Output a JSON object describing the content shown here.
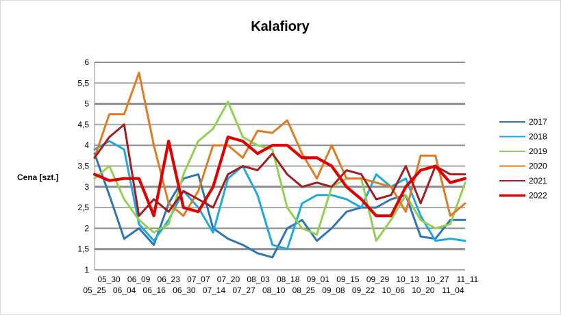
{
  "chart_data": {
    "type": "line",
    "title": "Kalafiory",
    "ylabel": "Cena [szt.]",
    "xlabel": "",
    "ylim": [
      1,
      6
    ],
    "yticks": [
      "1",
      "1,5",
      "2",
      "2,5",
      "3",
      "3,5",
      "4",
      "4,5",
      "5",
      "5,5",
      "6"
    ],
    "ytick_values": [
      1,
      1.5,
      2,
      2.5,
      3,
      3.5,
      4,
      4.5,
      5,
      5.5,
      6
    ],
    "grid": true,
    "legend_position": "right",
    "x_ticks_upper": [
      "05_30",
      "06_09",
      "06_23",
      "07_07",
      "07_20",
      "08_03",
      "08_18",
      "09_01",
      "09_15",
      "09_29",
      "10_13",
      "10_27",
      "11_11"
    ],
    "x_ticks_lower": [
      "05_25",
      "06_04",
      "06_16",
      "06_30",
      "07_14",
      "07_27",
      "08_10",
      "08_25",
      "09_08",
      "09_22",
      "10_06",
      "10_20",
      "11_04"
    ],
    "x": [
      "05_25",
      "05_30",
      "06_04",
      "06_09",
      "06_16",
      "06_23",
      "06_30",
      "07_07",
      "07_14",
      "07_20",
      "07_27",
      "08_03",
      "08_10",
      "08_18",
      "08_25",
      "09_01",
      "09_08",
      "09_15",
      "09_22",
      "09_29",
      "10_06",
      "10_13",
      "10_20",
      "10_27",
      "11_04",
      "11_11"
    ],
    "series": [
      {
        "name": "2017",
        "color": "#2e75b6",
        "width": 3,
        "values": [
          3.8,
          2.8,
          1.75,
          2.0,
          1.6,
          2.6,
          3.2,
          3.3,
          2.0,
          1.75,
          1.6,
          1.4,
          1.3,
          2.0,
          2.2,
          1.7,
          2.0,
          2.4,
          2.5,
          2.5,
          2.7,
          2.8,
          1.8,
          1.75,
          2.2,
          2.2
        ]
      },
      {
        "name": "2018",
        "color": "#1fa8e0",
        "width": 3,
        "values": [
          3.9,
          4.1,
          3.9,
          2.1,
          1.7,
          2.2,
          2.9,
          2.5,
          1.9,
          3.2,
          3.5,
          2.8,
          1.6,
          1.5,
          2.6,
          2.8,
          2.8,
          2.7,
          2.5,
          3.3,
          3.0,
          3.2,
          2.3,
          1.7,
          1.75,
          1.7
        ]
      },
      {
        "name": "2019",
        "color": "#92d050",
        "width": 3,
        "values": [
          3.2,
          3.5,
          2.7,
          2.2,
          1.9,
          2.1,
          3.3,
          4.1,
          4.4,
          5.05,
          4.2,
          4.0,
          3.9,
          2.5,
          2.0,
          1.85,
          3.0,
          3.2,
          3.2,
          1.7,
          2.2,
          2.8,
          2.2,
          2.0,
          2.1,
          3.1
        ]
      },
      {
        "name": "2020",
        "color": "#e07b22",
        "width": 3,
        "values": [
          3.7,
          4.75,
          4.75,
          5.75,
          4.0,
          2.6,
          2.3,
          2.9,
          4.0,
          4.0,
          3.7,
          4.35,
          4.3,
          4.6,
          3.8,
          3.2,
          4.0,
          3.2,
          3.2,
          3.1,
          3.0,
          2.4,
          3.75,
          3.75,
          2.3,
          2.6
        ]
      },
      {
        "name": "2021",
        "color": "#a51c1c",
        "width": 3,
        "values": [
          3.7,
          4.2,
          4.5,
          2.3,
          2.7,
          2.4,
          2.9,
          2.7,
          2.5,
          3.3,
          3.5,
          3.4,
          3.8,
          3.3,
          3.0,
          3.1,
          3.0,
          3.4,
          3.3,
          2.7,
          2.8,
          3.5,
          2.6,
          3.5,
          3.3,
          3.3
        ]
      },
      {
        "name": "2022",
        "color": "#e00000",
        "width": 4.2,
        "values": [
          3.3,
          3.15,
          3.2,
          3.2,
          2.3,
          4.1,
          2.5,
          2.4,
          3.0,
          4.2,
          4.1,
          3.8,
          4.0,
          4.0,
          3.7,
          3.7,
          3.5,
          3.0,
          2.7,
          2.3,
          2.3,
          3.0,
          3.4,
          3.5,
          3.1,
          3.2
        ]
      }
    ]
  }
}
